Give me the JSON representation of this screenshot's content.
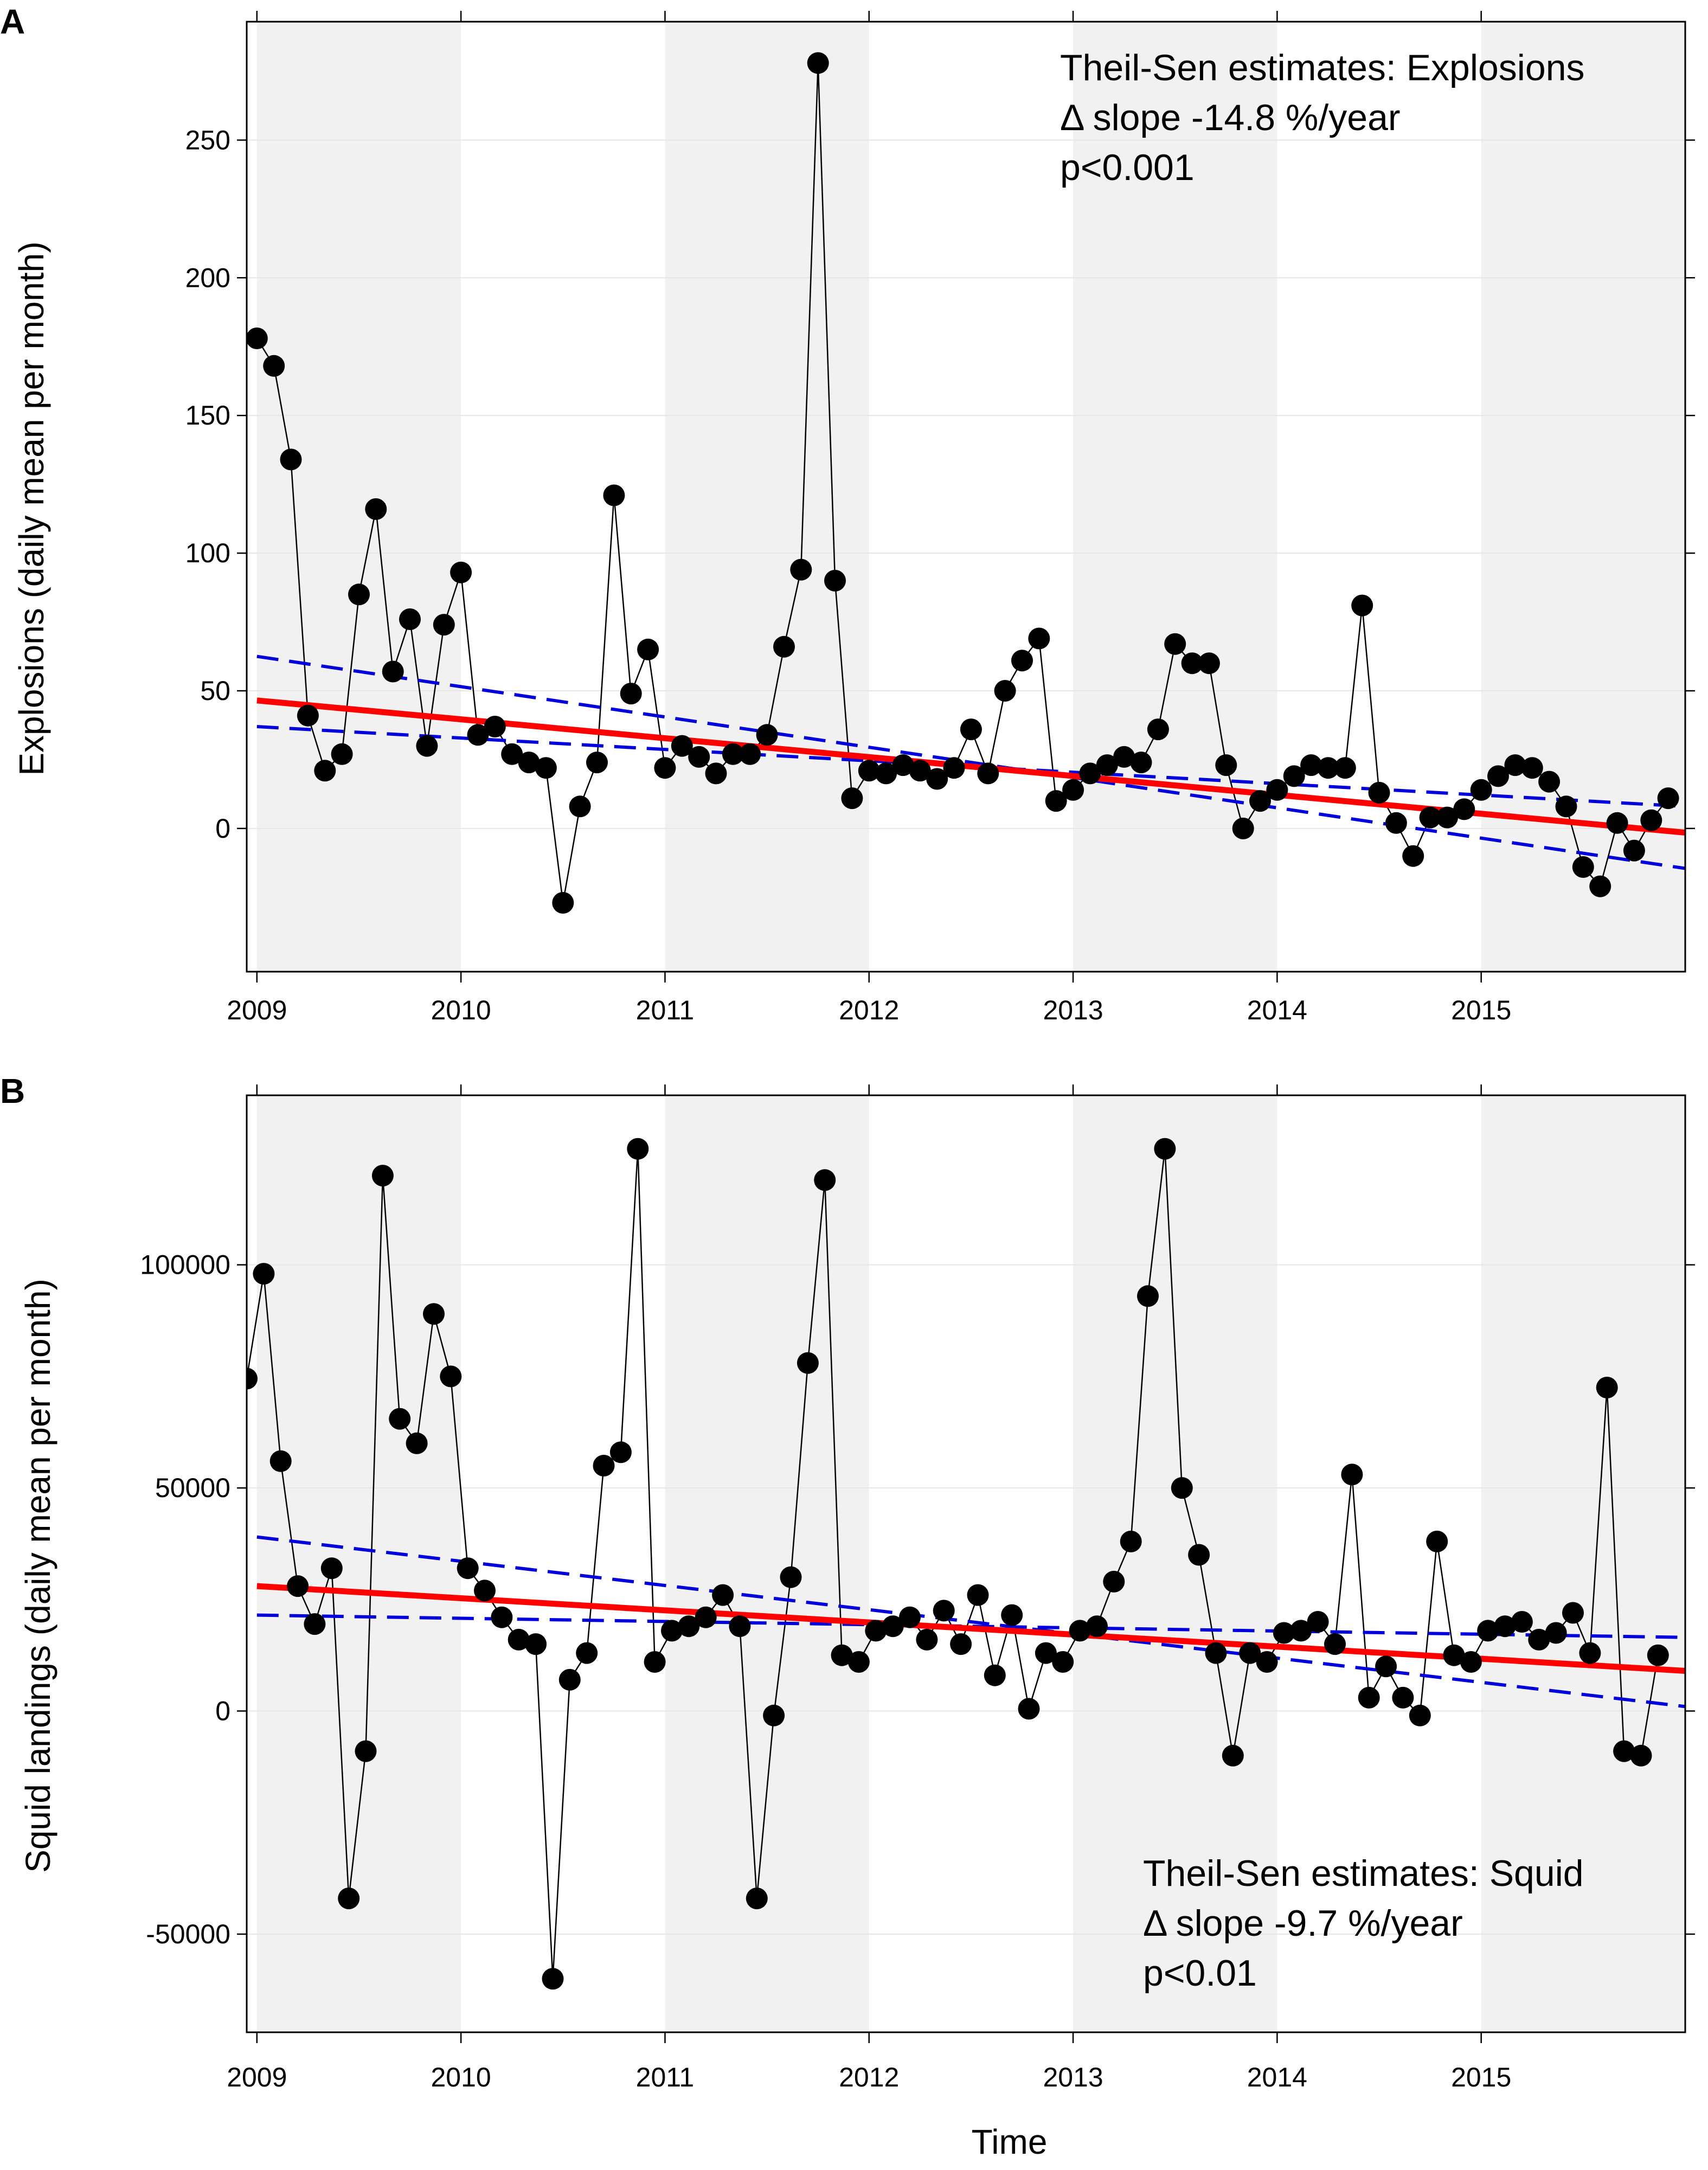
{
  "chart_data": [
    {
      "type": "line",
      "panel": "A",
      "xlabel": "",
      "ylabel": "Explosions (daily mean per month)",
      "xlim": [
        2008.95,
        2016.0
      ],
      "ylim": [
        -52,
        293
      ],
      "x_ticks": [
        2009,
        2010,
        2011,
        2012,
        2013,
        2014,
        2015
      ],
      "x_tick_labels": [
        "2009",
        "2010",
        "2011",
        "2012",
        "2013",
        "2014",
        "2015"
      ],
      "y_ticks": [
        0,
        50,
        100,
        150,
        200,
        250
      ],
      "y_tick_labels": [
        "0",
        "50",
        "100",
        "150",
        "200",
        "250"
      ],
      "shaded_years": [
        2009,
        2011,
        2013,
        2015
      ],
      "series": [
        {
          "name": "Explosions",
          "x_start": 2009.0,
          "x_step": 0.0833333,
          "values": [
            178,
            168,
            134,
            41,
            21,
            27,
            85,
            116,
            57,
            76,
            30,
            74,
            93,
            34,
            37,
            27,
            24,
            22,
            -27,
            8,
            24,
            121,
            49,
            65,
            22,
            30,
            26,
            20,
            27,
            27,
            34,
            66,
            94,
            278,
            90,
            11,
            21,
            20,
            23,
            21,
            18,
            22,
            36,
            20,
            50,
            61,
            69,
            10,
            14,
            20,
            23,
            26,
            24,
            36,
            67,
            60,
            60,
            23,
            0,
            10,
            14,
            19,
            23,
            22,
            22,
            81,
            13,
            2,
            -10,
            4,
            4,
            7,
            14,
            19,
            23,
            22,
            17,
            8,
            -14,
            -21,
            2,
            -8,
            3,
            11
          ]
        }
      ],
      "trend": {
        "x": [
          2009.0,
          2016.0
        ],
        "y": [
          46.5,
          -1.5
        ]
      },
      "ci_upper": {
        "x": [
          2009.0,
          2016.0
        ],
        "y": [
          62.5,
          -14.5
        ]
      },
      "ci_lower": {
        "x": [
          2009.0,
          2016.0
        ],
        "y": [
          37.0,
          8.0
        ]
      },
      "annotation": [
        "Theil-Sen estimates: Explosions",
        "Δ slope -14.8 %/year",
        "p<0.001"
      ]
    },
    {
      "type": "line",
      "panel": "B",
      "xlabel": "Time",
      "ylabel": "Squid landings (daily mean per month)",
      "xlim": [
        2008.95,
        2016.0
      ],
      "ylim": [
        -72000,
        138000
      ],
      "x_ticks": [
        2009,
        2010,
        2011,
        2012,
        2013,
        2014,
        2015
      ],
      "x_tick_labels": [
        "2009",
        "2010",
        "2011",
        "2012",
        "2013",
        "2014",
        "2015"
      ],
      "y_ticks": [
        -50000,
        0,
        50000,
        100000
      ],
      "y_tick_labels": [
        "-50000",
        "0",
        "50000",
        "100000"
      ],
      "shaded_years": [
        2009,
        2011,
        2013,
        2015
      ],
      "series": [
        {
          "name": "Squid",
          "x_start": 2008.95,
          "x_step": 0.0833333,
          "values": [
            74500,
            98000,
            56000,
            28000,
            19500,
            32000,
            -42000,
            -9000,
            120000,
            65500,
            60000,
            89000,
            75000,
            32000,
            27000,
            21000,
            16000,
            15000,
            -60000,
            7000,
            13000,
            55000,
            58000,
            126000,
            11000,
            18000,
            19000,
            21000,
            26000,
            19000,
            -42000,
            -1000,
            30000,
            78000,
            119000,
            12500,
            11000,
            18000,
            19000,
            21000,
            16000,
            22500,
            15000,
            26000,
            8000,
            21500,
            500,
            13000,
            11000,
            18000,
            19000,
            29000,
            38000,
            93000,
            126000,
            50000,
            35000,
            13000,
            -10000,
            13000,
            11000,
            17500,
            18000,
            20000,
            15000,
            53000,
            3000,
            10000,
            3000,
            -1000,
            38000,
            12500,
            11000,
            18000,
            19000,
            20000,
            16000,
            17500,
            22000,
            13000,
            72500,
            -9000,
            -10000,
            12500
          ]
        }
      ],
      "trend": {
        "x": [
          2009.0,
          2016.0
        ],
        "y": [
          28000,
          9000
        ]
      },
      "ci_upper": {
        "x": [
          2009.0,
          2016.0
        ],
        "y": [
          39000,
          1000
        ]
      },
      "ci_lower": {
        "x": [
          2009.0,
          2016.0
        ],
        "y": [
          21500,
          16500
        ]
      },
      "annotation": [
        "Theil-Sen estimates: Squid",
        "Δ slope -9.7 %/year",
        "p<0.01"
      ]
    }
  ],
  "colors": {
    "points": "#000000",
    "trend": "#ff0000",
    "ci": "#0000dd",
    "shade": "#f1f1f1",
    "grid": "#e6e6e6"
  }
}
